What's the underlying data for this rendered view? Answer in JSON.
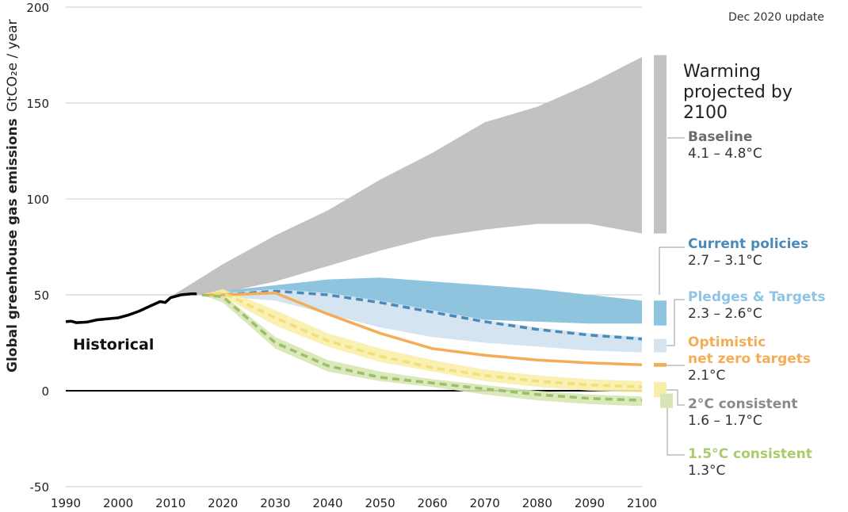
{
  "chart_data": {
    "type": "area",
    "note": "Dec 2020 update",
    "ylabel": "Global greenhouse gas emissions",
    "yunit": "GtCO₂e / year",
    "xlim": [
      1990,
      2100
    ],
    "ylim": [
      -50,
      200
    ],
    "xticks": [
      "1990",
      "2000",
      "2010",
      "2020",
      "2030",
      "2040",
      "2050",
      "2060",
      "2070",
      "2080",
      "2090",
      "2100"
    ],
    "yticks": [
      "200",
      "150",
      "100",
      "50",
      "0",
      "-50"
    ],
    "grid": true,
    "panel_title": "Warming projected by 2100",
    "historical": {
      "name": "Historical",
      "x": [
        1990,
        1991,
        1992,
        1994,
        1996,
        1998,
        2000,
        2002,
        2004,
        2006,
        2008,
        2009,
        2010,
        2012,
        2014,
        2015
      ],
      "y": [
        36,
        36.3,
        35.5,
        35.8,
        37,
        37.5,
        38,
        39.5,
        41.5,
        44,
        46.5,
        46,
        48.5,
        50,
        50.5,
        50.5
      ]
    },
    "years": [
      2020,
      2030,
      2040,
      2050,
      2060,
      2070,
      2080,
      2090,
      2100
    ],
    "series": [
      {
        "name": "Baseline",
        "range": "4.1 – 4.8°C",
        "color": "#c2c2c2",
        "label_color": "#6b6b6b",
        "upper": [
          66,
          81,
          94,
          110,
          124,
          140,
          148,
          160,
          174
        ],
        "lower": [
          51,
          57,
          65,
          73,
          80,
          84,
          87,
          87,
          82
        ],
        "warming_bar": [
          82,
          175
        ]
      },
      {
        "name": "Current policies",
        "range": "2.7 – 3.1°C",
        "color": "#8fc4df",
        "label_color": "#4a8ab8",
        "upper": [
          52,
          55,
          58,
          59,
          57,
          55,
          53,
          50,
          47
        ],
        "lower": [
          49,
          50,
          48,
          45,
          41,
          37,
          36,
          35,
          35
        ],
        "warming_bar": [
          34,
          47
        ]
      },
      {
        "name": "Pledges & Targets",
        "range": "2.3 – 2.6°C",
        "color": "#d4e4f0",
        "label_color": "#8ec4e6",
        "upper": [
          51,
          53,
          51,
          47,
          42,
          37,
          33,
          30,
          28
        ],
        "lower": [
          49,
          47,
          40,
          33,
          28,
          25,
          23,
          21,
          20
        ],
        "median": [
          50,
          52,
          50,
          46,
          41,
          36,
          32,
          29,
          27
        ],
        "median_color": "#4a8ab8",
        "warming_bar": [
          20,
          27
        ]
      },
      {
        "name": "Optimistic net zero targets",
        "name_lines": [
          "Optimistic",
          "net zero targets"
        ],
        "range": "2.1°C",
        "color": "#f4ad57",
        "label_color": "#f4ad57",
        "line": [
          50,
          51,
          40,
          30,
          22,
          18.5,
          16,
          14.5,
          13.5
        ],
        "warming_bar": [
          12.5,
          14.5
        ]
      },
      {
        "name": "2°C consistent",
        "range": "1.6 – 1.7°C",
        "color": "#f8eea8",
        "label_color": "#8a8a8a",
        "upper": [
          53,
          42,
          30,
          22,
          16,
          11,
          8,
          6,
          5
        ],
        "lower": [
          49,
          34,
          23,
          15,
          10,
          5,
          2,
          0,
          -1
        ],
        "median": [
          51,
          38,
          26,
          18,
          12,
          8,
          5,
          3,
          2
        ],
        "median_color": "#efe07a",
        "warming_bar": [
          -3.5,
          4.5
        ]
      },
      {
        "name": "1.5°C consistent",
        "range": "1.3°C",
        "color": "#d6e5b3",
        "label_color": "#a8cc6a",
        "upper": [
          50,
          28,
          16,
          10,
          6,
          3,
          0,
          -2,
          -3
        ],
        "lower": [
          46,
          22,
          10,
          5,
          2,
          -2,
          -5,
          -7,
          -8
        ],
        "median": [
          49,
          25,
          13,
          7,
          4,
          1,
          -2,
          -4,
          -5
        ],
        "median_color": "#9bbf6a",
        "warming_bar": [
          -9,
          -1.5
        ]
      }
    ]
  }
}
